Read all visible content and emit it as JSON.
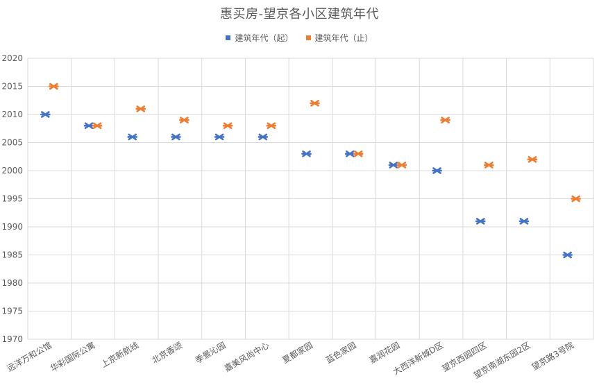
{
  "chart_data": {
    "type": "scatter",
    "title": "惠买房-望京各小区建筑年代",
    "xlabel": "",
    "ylabel": "",
    "ylim": [
      1970,
      2020
    ],
    "yticks": [
      1970,
      1975,
      1980,
      1985,
      1990,
      1995,
      2000,
      2005,
      2010,
      2015,
      2020
    ],
    "grid": true,
    "legend_position": "top",
    "marker": "star-x",
    "categories": [
      "远洋万和公馆",
      "华彩国际公寓",
      "上京新航线",
      "北京香颂",
      "季景沁园",
      "嘉美风尚中心",
      "夏都家园",
      "蓝色家园",
      "嘉润花园",
      "大西洋新城D区",
      "望京西园四区",
      "望京南湖东园2区",
      "望京路3号院"
    ],
    "series": [
      {
        "name": "建筑年代（起）",
        "color": "#4472C4",
        "values": [
          2010,
          2008,
          2006,
          2006,
          2006,
          2006,
          2003,
          2003,
          2001,
          2000,
          1991,
          1991,
          1985
        ]
      },
      {
        "name": "建筑年代（止）",
        "color": "#ED7D31",
        "values": [
          2015,
          2008,
          2011,
          2009,
          2008,
          2008,
          2012,
          2003,
          2001,
          2009,
          2001,
          2002,
          1995
        ]
      }
    ]
  },
  "colors": {
    "grid": "#D9D9D9",
    "text": "#595959"
  }
}
